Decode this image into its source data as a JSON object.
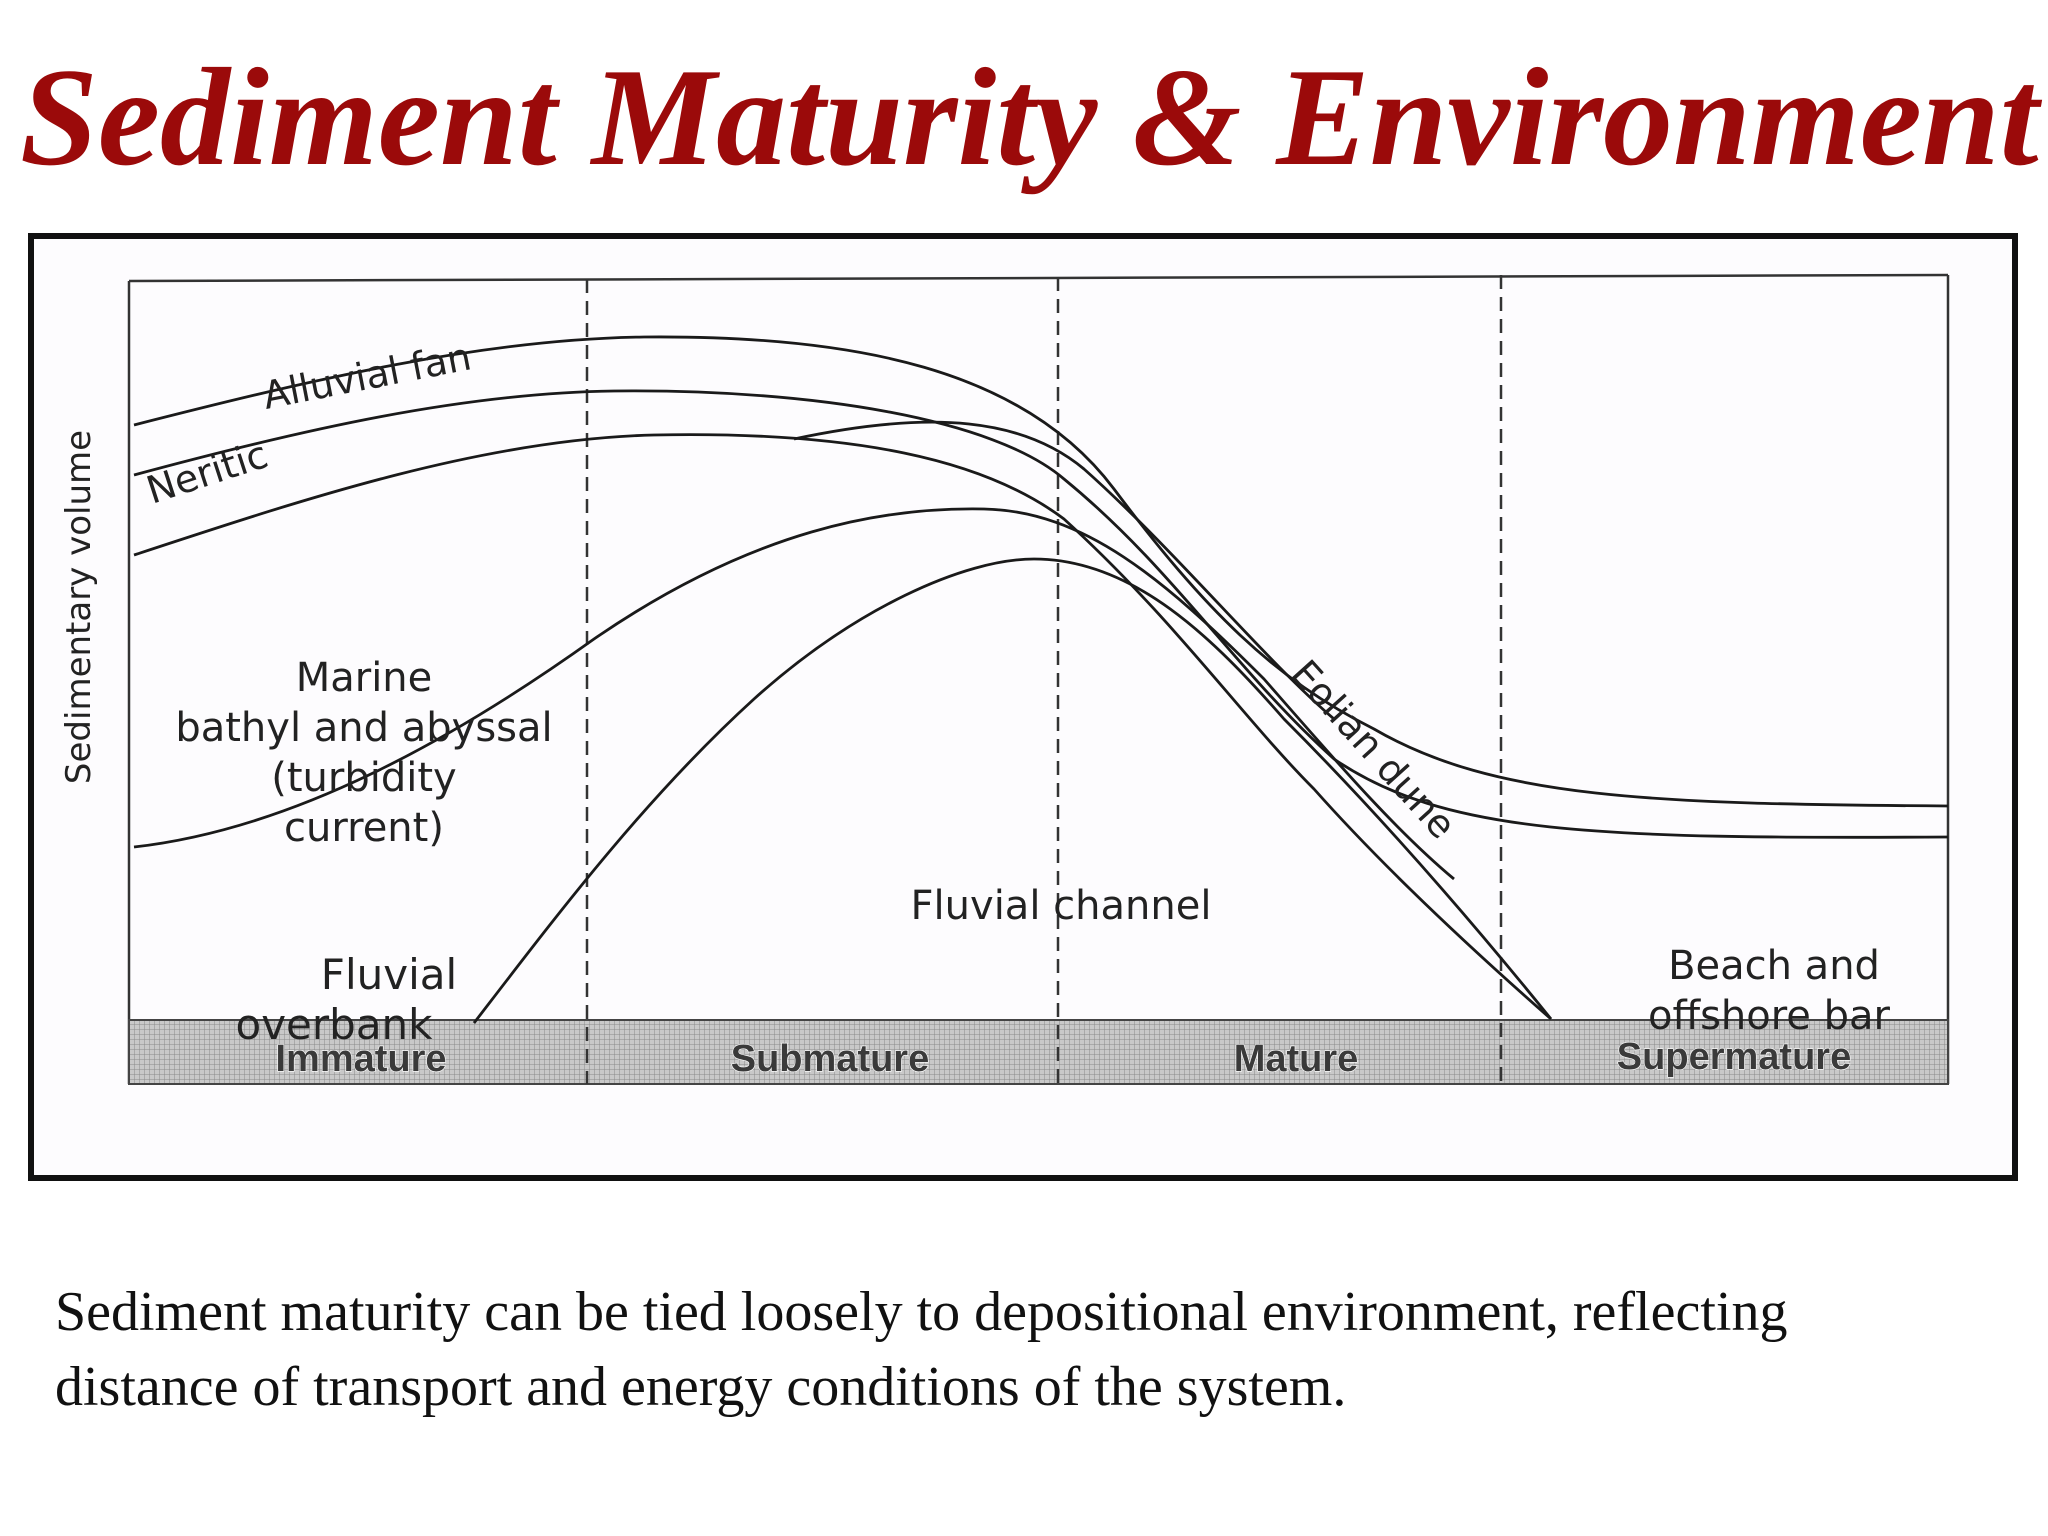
{
  "title": "Sediment Maturity & Environment",
  "caption": {
    "line1": "Sediment maturity can be tied loosely to depositional environment, reflecting",
    "line2": "distance of transport and energy conditions of the system."
  },
  "diagram": {
    "y_axis_label": "Sedimentary volume",
    "maturity_classes": [
      "Immature",
      "Submature",
      "Mature",
      "Supermature"
    ],
    "environments": {
      "alluvial_fan": "Alluvial fan",
      "neritic": "Neritic",
      "marine_line1": "Marine",
      "marine_line2": "bathyl and abyssal",
      "marine_line3": "(turbidity",
      "marine_line4": "current)",
      "fluvial_overbank_line1": "Fluvial",
      "fluvial_overbank_line2": "overbank",
      "fluvial_channel": "Fluvial channel",
      "eolian_dune": "Eolian dune",
      "beach_line1": "Beach and",
      "beach_line2": "offshore bar"
    },
    "colors": {
      "title": "#9b0a0a",
      "curve": "#1a1a1a",
      "band_fill": "#b8b8b8"
    }
  }
}
